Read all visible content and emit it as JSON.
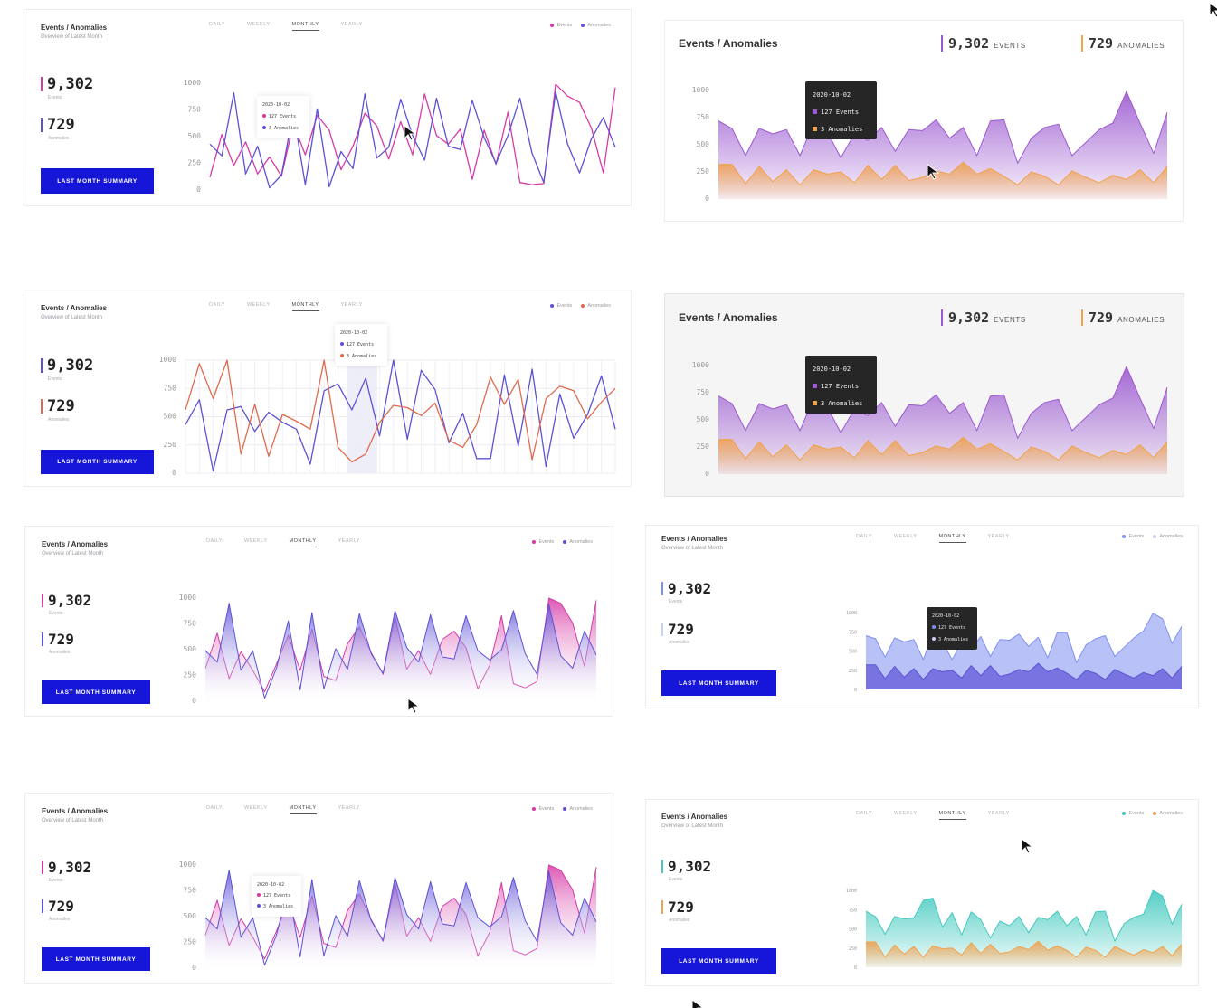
{
  "colors": {
    "button": "#1616d8",
    "magenta": "#d63aa6",
    "blue": "#5c52d6",
    "purple": "#9b59d0",
    "orange": "#f0a24e",
    "red": "#e06a4e",
    "periwinkle": "#7f8ff0",
    "teal": "#43c9bf"
  },
  "common": {
    "title": "Events / Anomalies",
    "subtitle": "Overview of Latest Month",
    "events_value": "9,302",
    "events_caption": "Events",
    "anomalies_value": "729",
    "anomalies_caption": "Anomalies",
    "button_label": "LAST MONTH SUMMARY",
    "tabs": [
      "DAILY",
      "WEEKLY",
      "MONTHLY",
      "YEARLY"
    ],
    "legend_events": "Events",
    "legend_anomalies": "Anomalies",
    "events_unit": "EVENTS",
    "anomalies_unit": "ANOMALIES",
    "tooltip_date": "2020-10-02",
    "tooltip_events": "127 Events",
    "tooltip_anomalies": "3 Anomalies"
  },
  "chart_data": [
    {
      "type": "line",
      "ylim": [
        0,
        1000
      ],
      "yticks": [
        "1000",
        "750",
        "500",
        "250",
        "0"
      ],
      "series": [
        {
          "name": "Events",
          "color": "magenta",
          "values": [
            120,
            520,
            230,
            450,
            150,
            310,
            130,
            620,
            330,
            700,
            560,
            190,
            410,
            720,
            600,
            290,
            640,
            330,
            900,
            510,
            430,
            570,
            100,
            560,
            240,
            730,
            70,
            50,
            60,
            990,
            880,
            820,
            580,
            160,
            960
          ]
        },
        {
          "name": "Anomalies",
          "color": "blue",
          "values": [
            430,
            320,
            910,
            150,
            410,
            20,
            140,
            730,
            50,
            760,
            30,
            360,
            200,
            900,
            300,
            400,
            850,
            510,
            280,
            860,
            410,
            380,
            840,
            490,
            250,
            510,
            860,
            350,
            70,
            920,
            430,
            160,
            480,
            680,
            400
          ]
        }
      ]
    },
    {
      "type": "area",
      "ylim": [
        0,
        1000
      ],
      "yticks": [
        "1000",
        "750",
        "500",
        "250",
        "0"
      ],
      "series": [
        {
          "name": "Events",
          "color": "purple",
          "values": [
            720,
            650,
            400,
            650,
            600,
            640,
            400,
            700,
            620,
            380,
            600,
            540,
            660,
            440,
            640,
            630,
            730,
            560,
            660,
            400,
            720,
            730,
            330,
            560,
            660,
            690,
            400,
            520,
            640,
            700,
            990,
            700,
            420,
            800
          ]
        },
        {
          "name": "Anomalies",
          "color": "orange",
          "values": [
            320,
            320,
            140,
            300,
            160,
            270,
            130,
            270,
            230,
            250,
            150,
            310,
            180,
            310,
            170,
            200,
            260,
            230,
            340,
            230,
            280,
            210,
            130,
            250,
            210,
            130,
            260,
            200,
            150,
            220,
            180,
            270,
            150,
            300
          ]
        }
      ]
    },
    {
      "type": "line",
      "ylim": [
        0,
        1000
      ],
      "yticks": [
        "1000",
        "750",
        "500",
        "250",
        "0"
      ],
      "series": [
        {
          "name": "Events",
          "color": "blue",
          "values": [
            430,
            650,
            20,
            560,
            590,
            370,
            540,
            450,
            390,
            80,
            730,
            790,
            560,
            840,
            330,
            1000,
            300,
            910,
            740,
            270,
            530,
            130,
            130,
            870,
            240,
            920,
            60,
            700,
            310,
            520,
            860,
            390
          ]
        },
        {
          "name": "Anomalies",
          "color": "red",
          "values": [
            560,
            970,
            660,
            1000,
            170,
            610,
            150,
            520,
            460,
            390,
            1000,
            230,
            100,
            170,
            450,
            600,
            580,
            510,
            620,
            290,
            230,
            430,
            850,
            610,
            830,
            120,
            660,
            770,
            730,
            480,
            630,
            750
          ]
        }
      ]
    },
    {
      "type": "area",
      "ylim": [
        0,
        1000
      ],
      "yticks": [
        "1000",
        "750",
        "500",
        "250",
        "0"
      ],
      "series": [
        {
          "name": "Events",
          "color": "purple",
          "values": [
            720,
            650,
            400,
            650,
            600,
            640,
            400,
            700,
            620,
            380,
            600,
            540,
            660,
            440,
            640,
            630,
            730,
            560,
            660,
            400,
            720,
            730,
            330,
            560,
            660,
            690,
            400,
            520,
            640,
            700,
            990,
            700,
            420,
            800
          ]
        },
        {
          "name": "Anomalies",
          "color": "orange",
          "values": [
            320,
            320,
            140,
            300,
            160,
            270,
            130,
            270,
            230,
            250,
            150,
            310,
            180,
            310,
            170,
            200,
            260,
            230,
            340,
            230,
            280,
            210,
            130,
            250,
            210,
            130,
            260,
            200,
            150,
            220,
            180,
            270,
            150,
            300
          ]
        }
      ]
    },
    {
      "type": "area",
      "ylim": [
        0,
        1000
      ],
      "yticks": [
        "1000",
        "750",
        "500",
        "250",
        "0"
      ],
      "series": [
        {
          "name": "Events",
          "color": "magenta",
          "values": [
            320,
            660,
            220,
            480,
            300,
            90,
            360,
            640,
            300,
            700,
            240,
            200,
            560,
            720,
            470,
            260,
            820,
            310,
            490,
            260,
            600,
            680,
            520,
            120,
            350,
            830,
            170,
            130,
            190,
            1000,
            950,
            760,
            340,
            980
          ]
        },
        {
          "name": "Anomalies",
          "color": "blue",
          "values": [
            490,
            380,
            950,
            300,
            490,
            30,
            320,
            780,
            110,
            860,
            120,
            510,
            310,
            850,
            460,
            270,
            880,
            520,
            380,
            840,
            430,
            410,
            830,
            490,
            400,
            500,
            880,
            460,
            260,
            940,
            440,
            320,
            680,
            450
          ]
        }
      ]
    },
    {
      "type": "area",
      "ylim": [
        0,
        1000
      ],
      "yticks": [
        "1000",
        "750",
        "500",
        "250",
        "0"
      ],
      "series": [
        {
          "name": "Events",
          "color": "periwinkle",
          "values": [
            700,
            660,
            420,
            670,
            620,
            650,
            390,
            740,
            610,
            390,
            610,
            520,
            690,
            430,
            650,
            640,
            720,
            560,
            680,
            410,
            740,
            740,
            350,
            580,
            660,
            700,
            430,
            550,
            670,
            760,
            990,
            920,
            600,
            820
          ]
        },
        {
          "name": "Anomalies",
          "color": "blue",
          "values": [
            320,
            320,
            140,
            300,
            160,
            270,
            130,
            270,
            230,
            250,
            150,
            310,
            180,
            310,
            170,
            200,
            260,
            230,
            340,
            230,
            280,
            210,
            130,
            250,
            210,
            130,
            260,
            200,
            150,
            220,
            180,
            270,
            150,
            300
          ]
        }
      ]
    },
    {
      "type": "area",
      "ylim": [
        0,
        1000
      ],
      "yticks": [
        "1000",
        "750",
        "500",
        "250",
        "0"
      ],
      "series": [
        {
          "name": "Events",
          "color": "magenta",
          "values": [
            320,
            660,
            220,
            480,
            300,
            90,
            360,
            640,
            300,
            700,
            240,
            200,
            560,
            720,
            470,
            260,
            820,
            310,
            490,
            260,
            600,
            680,
            520,
            120,
            350,
            830,
            170,
            130,
            190,
            1000,
            950,
            760,
            340,
            980
          ]
        },
        {
          "name": "Anomalies",
          "color": "blue",
          "values": [
            490,
            380,
            950,
            300,
            490,
            30,
            320,
            780,
            110,
            860,
            120,
            510,
            310,
            850,
            460,
            270,
            880,
            520,
            380,
            840,
            430,
            410,
            830,
            490,
            400,
            500,
            880,
            460,
            260,
            940,
            440,
            320,
            680,
            450
          ]
        }
      ]
    },
    {
      "type": "area",
      "ylim": [
        0,
        1000
      ],
      "yticks": [
        "1000",
        "750",
        "500",
        "250",
        "0"
      ],
      "series": [
        {
          "name": "Events",
          "color": "teal",
          "values": [
            730,
            660,
            430,
            660,
            630,
            640,
            870,
            900,
            520,
            710,
            420,
            720,
            620,
            380,
            600,
            540,
            660,
            450,
            650,
            620,
            730,
            540,
            660,
            420,
            720,
            730,
            340,
            570,
            650,
            690,
            1000,
            930,
            560,
            820
          ]
        },
        {
          "name": "Anomalies",
          "color": "orange",
          "values": [
            330,
            330,
            130,
            290,
            170,
            270,
            130,
            280,
            240,
            250,
            160,
            320,
            180,
            300,
            180,
            200,
            270,
            230,
            340,
            220,
            280,
            220,
            130,
            260,
            220,
            130,
            270,
            210,
            160,
            230,
            190,
            270,
            150,
            300
          ]
        }
      ]
    }
  ]
}
